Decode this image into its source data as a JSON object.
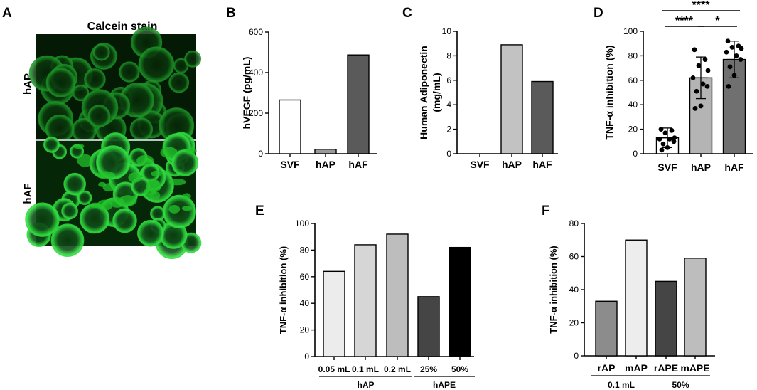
{
  "figure": {
    "panel_labels": [
      "A",
      "B",
      "C",
      "D",
      "E",
      "F"
    ]
  },
  "micrograph": {
    "title": "Calcein stain",
    "rows": [
      "hAP",
      "hAF"
    ],
    "stain_color": "#22c22a"
  },
  "chart_data": [
    {
      "panel": "B",
      "type": "bar",
      "categories": [
        "SVF",
        "hAP",
        "hAF"
      ],
      "values": [
        265,
        22,
        487
      ],
      "colors": [
        "#ffffff",
        "#9a9a9a",
        "#5a5a5a"
      ],
      "ylabel": "hVEGF (pg/mL)",
      "ylim": [
        0,
        600
      ],
      "yticks": [
        0,
        200,
        400,
        600
      ]
    },
    {
      "panel": "C",
      "type": "bar",
      "categories": [
        "SVF",
        "hAP",
        "hAF"
      ],
      "values": [
        0,
        8.9,
        5.9
      ],
      "colors": [
        "#ffffff",
        "#c2c2c2",
        "#5a5a5a"
      ],
      "ylabel": "Human Adiponectin (mg/mL)",
      "ylabel_lines": [
        "Human Adiponectin",
        "(mg/mL)"
      ],
      "ylim": [
        0,
        10
      ],
      "yticks": [
        0,
        2,
        4,
        6,
        8,
        10
      ]
    },
    {
      "panel": "D",
      "type": "bar",
      "categories": [
        "SVF",
        "hAP",
        "hAF"
      ],
      "values": [
        13,
        62,
        77
      ],
      "errors": [
        8,
        17,
        15
      ],
      "colors": [
        "#ffffff",
        "#b4b4b4",
        "#707070"
      ],
      "points": [
        [
          20,
          19,
          17,
          13,
          12,
          12,
          10,
          8,
          5,
          3
        ],
        [
          85,
          77,
          72,
          68,
          62,
          57,
          55,
          51,
          39,
          37
        ],
        [
          92,
          88,
          87,
          86,
          83,
          80,
          77,
          71,
          64,
          55
        ]
      ],
      "ylabel": "TNF-α inhibition (%)",
      "ylim": [
        0,
        100
      ],
      "yticks": [
        0,
        20,
        40,
        60,
        80,
        100
      ],
      "significance": [
        {
          "from": 0,
          "to": 2,
          "label": "****"
        },
        {
          "from": 0,
          "to": 1,
          "label": "****"
        },
        {
          "from": 1,
          "to": 2,
          "label": "*"
        }
      ]
    },
    {
      "panel": "E",
      "type": "bar",
      "categories": [
        "0.05 mL",
        "0.1 mL",
        "0.2 mL",
        "25%",
        "50%"
      ],
      "values": [
        64,
        84,
        92,
        45,
        82
      ],
      "colors": [
        "#ececec",
        "#d6d6d6",
        "#bdbdbd",
        "#454545",
        "#000000"
      ],
      "ylabel": "TNF-α inhibition (%)",
      "ylim": [
        0,
        100
      ],
      "yticks": [
        0,
        20,
        40,
        60,
        80,
        100
      ],
      "groups": [
        {
          "label": "hAP",
          "from": 0,
          "to": 2
        },
        {
          "label": "hAPE",
          "from": 3,
          "to": 4
        }
      ]
    },
    {
      "panel": "F",
      "type": "bar",
      "categories": [
        "rAP",
        "mAP",
        "rAPE",
        "mAPE"
      ],
      "values": [
        33,
        70,
        45,
        59
      ],
      "colors": [
        "#8c8c8c",
        "#ededed",
        "#454545",
        "#bdbdbd"
      ],
      "ylabel": "TNF-α inhibition (%)",
      "ylim": [
        0,
        80
      ],
      "yticks": [
        0,
        20,
        40,
        60,
        80
      ],
      "groups": [
        {
          "label": "0.1 mL",
          "from": 0,
          "to": 1
        },
        {
          "label": "50%",
          "from": 2,
          "to": 3
        }
      ]
    }
  ]
}
